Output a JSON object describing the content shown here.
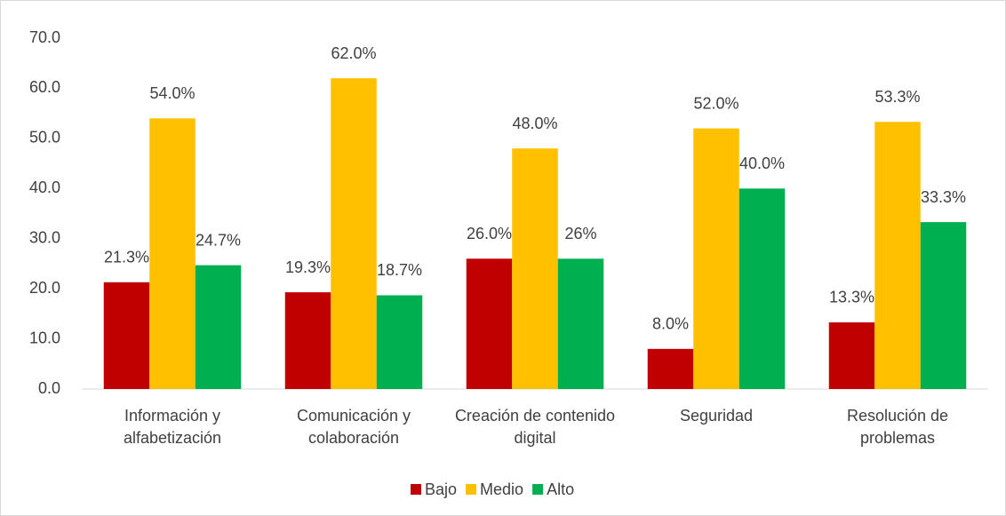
{
  "chart_data": {
    "type": "bar",
    "categories": [
      "Información y alfabetización",
      "Comunicación y colaboración",
      "Creación de contenido digital",
      "Seguridad",
      "Resolución de problemas"
    ],
    "series": [
      {
        "name": "Bajo",
        "color": "#c00000",
        "values": [
          21.3,
          19.3,
          26.0,
          8.0,
          13.3
        ],
        "value_labels": [
          "21.3%",
          "19.3%",
          "26.0%",
          "8.0%",
          "13.3%"
        ]
      },
      {
        "name": "Medio",
        "color": "#ffc000",
        "values": [
          54.0,
          62.0,
          48.0,
          52.0,
          53.3
        ],
        "value_labels": [
          "54.0%",
          "62.0%",
          "48.0%",
          "52.0%",
          "53.3%"
        ]
      },
      {
        "name": "Alto",
        "color": "#00b050",
        "values": [
          24.7,
          18.7,
          26,
          40.0,
          33.3
        ],
        "value_labels": [
          "24.7%",
          "18.7%",
          "26%",
          "40.0%",
          "33.3%"
        ]
      }
    ],
    "ylim": [
      0,
      70
    ],
    "yticks": [
      {
        "value": 0,
        "label": "0.0"
      },
      {
        "value": 10,
        "label": "10.0"
      },
      {
        "value": 20,
        "label": "20.0"
      },
      {
        "value": 30,
        "label": "30.0"
      },
      {
        "value": 40,
        "label": "40.0"
      },
      {
        "value": 50,
        "label": "50.0"
      },
      {
        "value": 60,
        "label": "60.0"
      },
      {
        "value": 70,
        "label": "70.0"
      }
    ],
    "grid": false,
    "legend": "bottom"
  }
}
